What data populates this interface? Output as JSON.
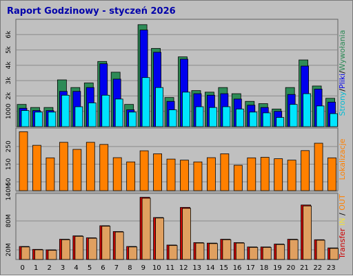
{
  "title": "Raport Godzinowy -  styczeń 2026",
  "chart_data": [
    {
      "type": "bar",
      "panel": "pages-files-requests",
      "categories": [
        "0",
        "1",
        "2",
        "3",
        "4",
        "5",
        "6",
        "7",
        "8",
        "9",
        "10",
        "11",
        "12",
        "13",
        "14",
        "15",
        "16",
        "17",
        "18",
        "19",
        "20",
        "21",
        "22",
        "23"
      ],
      "series": [
        {
          "name": "Wywołania",
          "color": "#2e8b57",
          "values": [
            1450,
            1250,
            1250,
            3050,
            2550,
            2850,
            4250,
            3550,
            1450,
            6650,
            5100,
            1900,
            4550,
            2350,
            2250,
            2550,
            2150,
            1650,
            1500,
            1150,
            2550,
            4350,
            2650,
            1850
          ]
        },
        {
          "name": "Pliki",
          "color": "#0000ee",
          "values": [
            1200,
            1050,
            1050,
            2300,
            2300,
            2550,
            4100,
            3100,
            1100,
            6300,
            4850,
            1650,
            4400,
            2150,
            2050,
            2150,
            1800,
            1400,
            1250,
            1000,
            2100,
            3950,
            2450,
            1600
          ]
        },
        {
          "name": "Strony",
          "color": "#00e5ff",
          "values": [
            1050,
            950,
            950,
            2050,
            1300,
            1550,
            2050,
            1800,
            950,
            3200,
            2550,
            1100,
            2250,
            1300,
            1250,
            1300,
            1150,
            950,
            900,
            600,
            1450,
            2150,
            1350,
            850
          ]
        }
      ],
      "ylim": [
        0,
        7000
      ],
      "ytick_labels": [
        "1000",
        "2k",
        "3k",
        "4k",
        "5k",
        "6k"
      ],
      "ytick_values": [
        1000,
        2000,
        3000,
        4000,
        5000,
        6000
      ],
      "side_label": {
        "parts": [
          "Strony",
          "/",
          "Pliki",
          "/",
          "Wywołania"
        ],
        "colors": [
          "#00bcd4",
          "#000000",
          "#0000ee",
          "#000000",
          "#2e8b57"
        ]
      }
    },
    {
      "type": "bar",
      "panel": "visits",
      "categories": [
        "0",
        "1",
        "2",
        "3",
        "4",
        "5",
        "6",
        "7",
        "8",
        "9",
        "10",
        "11",
        "12",
        "13",
        "14",
        "15",
        "16",
        "17",
        "18",
        "19",
        "20",
        "21",
        "22",
        "23"
      ],
      "series": [
        {
          "name": "Lokalizacje",
          "color": "#ff8000",
          "values": [
            334,
            257,
            186,
            274,
            234,
            274,
            262,
            187,
            163,
            226,
            209,
            179,
            173,
            163,
            187,
            209,
            144,
            186,
            189,
            181,
            173,
            227,
            269,
            186
          ]
        }
      ],
      "ylim": [
        0,
        355
      ],
      "ytick_labels": [
        "50",
        "150",
        "250"
      ],
      "ytick_values": [
        50,
        150,
        250
      ],
      "side_label": {
        "parts": [
          "Lokalizacje"
        ],
        "colors": [
          "#ff8000"
        ]
      }
    },
    {
      "type": "bar",
      "panel": "transfer",
      "categories": [
        "0",
        "1",
        "2",
        "3",
        "4",
        "5",
        "6",
        "7",
        "8",
        "9",
        "10",
        "11",
        "12",
        "13",
        "14",
        "15",
        "16",
        "17",
        "18",
        "19",
        "20",
        "21",
        "22",
        "23"
      ],
      "series": [
        {
          "name": "Transfer",
          "color": "#cc0000",
          "values": [
            27,
            21,
            20,
            42,
            49,
            45,
            70,
            58,
            27,
            129,
            87,
            30,
            108,
            35,
            34,
            42,
            35,
            26,
            26,
            32,
            42,
            113,
            41,
            24
          ]
        },
        {
          "name": "IN",
          "color": "#e0a060",
          "values": [
            26,
            20,
            19,
            41,
            48,
            44,
            69,
            57,
            26,
            127,
            86,
            29,
            106,
            34,
            33,
            41,
            34,
            25,
            25,
            31,
            41,
            111,
            40,
            23
          ]
        }
      ],
      "ylim": [
        0,
        137
      ],
      "ytick_labels": [
        "20M",
        "80M",
        "140M"
      ],
      "ytick_values": [
        20,
        80,
        140
      ],
      "side_label": {
        "parts": [
          "Transfer",
          "   ",
          "IN",
          " / ",
          "OUT"
        ],
        "colors": [
          "#cc0000",
          "#000000",
          "#f0e040",
          "#000000",
          "#ff8000"
        ]
      }
    }
  ]
}
